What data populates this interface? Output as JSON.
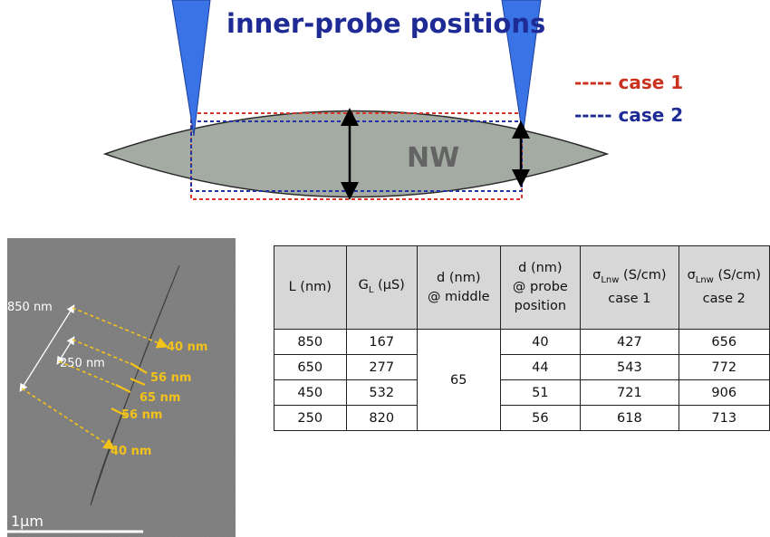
{
  "top_diagram": {
    "title": "inner-probe positions",
    "legend": [
      {
        "label": "----- case 1",
        "color": "#c8321e"
      },
      {
        "label": "----- case 2",
        "color": "#1f2b94"
      }
    ],
    "nanowire_label": "NW",
    "colors": {
      "probe": "#3a73e6",
      "nanowire": "#a3aba3",
      "case1": "#d8382a",
      "case2": "#2233a6"
    }
  },
  "sem_image": {
    "scale_bar": "1μm",
    "length_labels": [
      "850 nm",
      "250 nm"
    ],
    "diameter_labels": [
      "40 nm",
      "56 nm",
      "65 nm",
      "56 nm",
      "40 nm"
    ],
    "annotation_color": "#f2c21a"
  },
  "table": {
    "headers": [
      [
        "L (nm)"
      ],
      [
        "G",
        "L",
        " (μS)"
      ],
      [
        "d (nm)",
        "@ middle"
      ],
      [
        "d (nm)",
        "@ probe",
        "position"
      ],
      [
        "σ",
        "Lnw",
        " (S/cm)",
        "case 1"
      ],
      [
        "σ",
        "Lnw",
        " (S/cm)",
        "case 2"
      ]
    ],
    "middle_d": "65",
    "rows": [
      {
        "L": "850",
        "G": "167",
        "d_probe": "40",
        "sigma1": "427",
        "sigma2": "656"
      },
      {
        "L": "650",
        "G": "277",
        "d_probe": "44",
        "sigma1": "543",
        "sigma2": "772"
      },
      {
        "L": "450",
        "G": "532",
        "d_probe": "51",
        "sigma1": "721",
        "sigma2": "906"
      },
      {
        "L": "250",
        "G": "820",
        "d_probe": "56",
        "sigma1": "618",
        "sigma2": "713"
      }
    ]
  }
}
